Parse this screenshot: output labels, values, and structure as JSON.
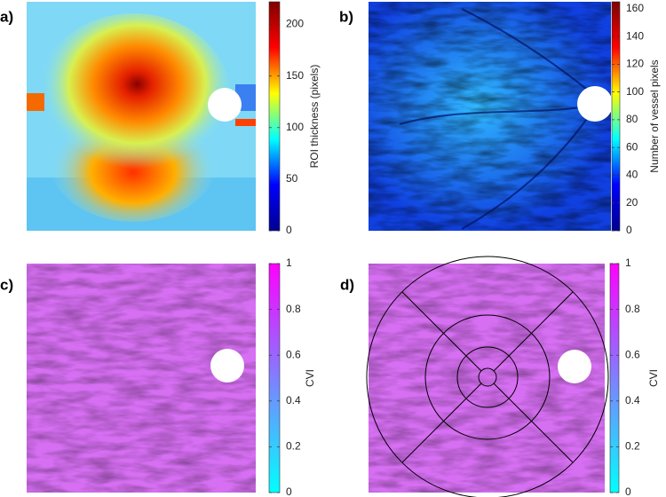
{
  "chart_data": [
    {
      "type": "heatmap",
      "panel": "a)",
      "colorbar_label": "ROI thickness (pixels)",
      "zlim": [
        0,
        222
      ],
      "zticks": [
        0,
        50,
        100,
        150,
        200
      ],
      "colormap": [
        "#00008f",
        "#0000ff",
        "#00ffff",
        "#ffff00",
        "#ff0000",
        "#800000"
      ]
    },
    {
      "type": "heatmap",
      "panel": "b)",
      "colorbar_label": "Number of vessel pixels",
      "zlim": [
        0,
        165
      ],
      "zticks": [
        0,
        20,
        40,
        60,
        80,
        100,
        120,
        140,
        160
      ],
      "colormap": [
        "#00008f",
        "#0000ff",
        "#00ffff",
        "#ffff00",
        "#ff0000",
        "#800000"
      ]
    },
    {
      "type": "heatmap",
      "panel": "c)",
      "colorbar_label": "CVI",
      "zlim": [
        0,
        1
      ],
      "zticks": [
        0,
        0.2,
        0.4,
        0.6,
        0.8,
        1
      ],
      "colormap": [
        "#00ffff",
        "#ff00ff"
      ]
    },
    {
      "type": "heatmap",
      "panel": "d)",
      "colorbar_label": "CVI",
      "zlim": [
        0,
        1
      ],
      "zticks": [
        0,
        0.2,
        0.4,
        0.6,
        0.8,
        1
      ],
      "colormap": [
        "#00ffff",
        "#ff00ff"
      ]
    }
  ]
}
